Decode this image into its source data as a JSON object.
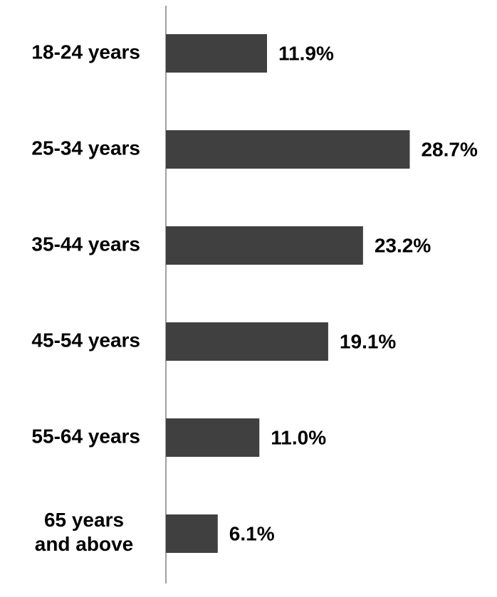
{
  "chart_data": {
    "type": "hbar",
    "categories": [
      "18-24 years",
      "25-34 years",
      "35-44 years",
      "45-54 years",
      "55-64 years",
      "65 years\nand above"
    ],
    "values": [
      11.9,
      28.7,
      23.2,
      19.1,
      11.0,
      6.1
    ],
    "value_labels": [
      "11.9%",
      "28.7%",
      "23.2%",
      "19.1%",
      "11.0%",
      "6.1%"
    ],
    "color": "#404040",
    "xlim": [
      0,
      30
    ]
  }
}
